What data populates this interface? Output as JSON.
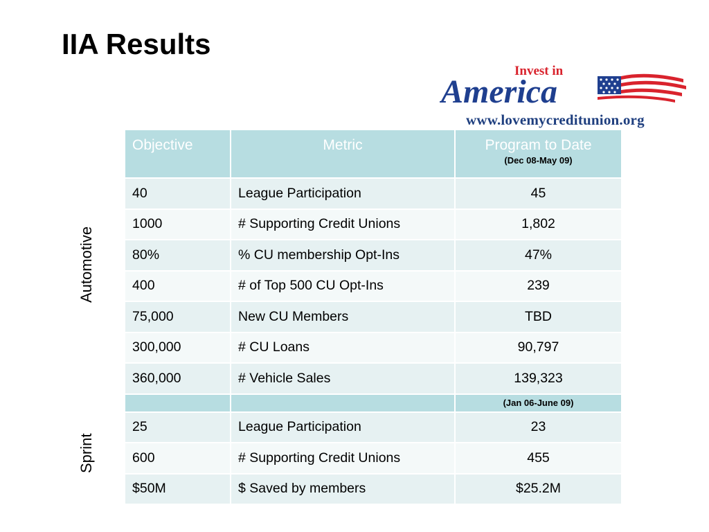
{
  "title": "IIA Results",
  "logo": {
    "top_text": "Invest in",
    "main_text": "America",
    "url": "www.lovemycreditunion.org",
    "colors": {
      "blue": "#1f3f8f",
      "red": "#d9232d"
    }
  },
  "side_labels": {
    "automotive": "Automotive",
    "sprint": "Sprint"
  },
  "table": {
    "headers": {
      "objective": "Objective",
      "metric": "Metric",
      "program": "Program to Date",
      "program_sub": "(Dec 08-May 09)"
    },
    "automotive_rows": [
      {
        "objective": "40",
        "metric": "League Participation",
        "value": "45"
      },
      {
        "objective": "1000",
        "metric": "# Supporting Credit Unions",
        "value": "1,802"
      },
      {
        "objective": "80%",
        "metric": "% CU membership Opt-Ins",
        "value": "47%"
      },
      {
        "objective": "400",
        "metric": "# of Top 500 CU Opt-Ins",
        "value": "239"
      },
      {
        "objective": "75,000",
        "metric": "New CU Members",
        "value": "TBD"
      },
      {
        "objective": "300,000",
        "metric": "# CU Loans",
        "value": "90,797"
      },
      {
        "objective": "360,000",
        "metric": "# Vehicle Sales",
        "value": "139,323"
      }
    ],
    "divider_sub": "(Jan 06-June 09)",
    "sprint_rows": [
      {
        "objective": "25",
        "metric": "League Participation",
        "value": "23"
      },
      {
        "objective": "600",
        "metric": "# Supporting Credit Unions",
        "value": "455"
      },
      {
        "objective": "$50M",
        "metric": "$ Saved by members",
        "value": "$25.2M"
      }
    ],
    "colors": {
      "header": "#b7dde1",
      "row_odd": "#e6f1f2",
      "row_even": "#f4f9f9"
    }
  }
}
